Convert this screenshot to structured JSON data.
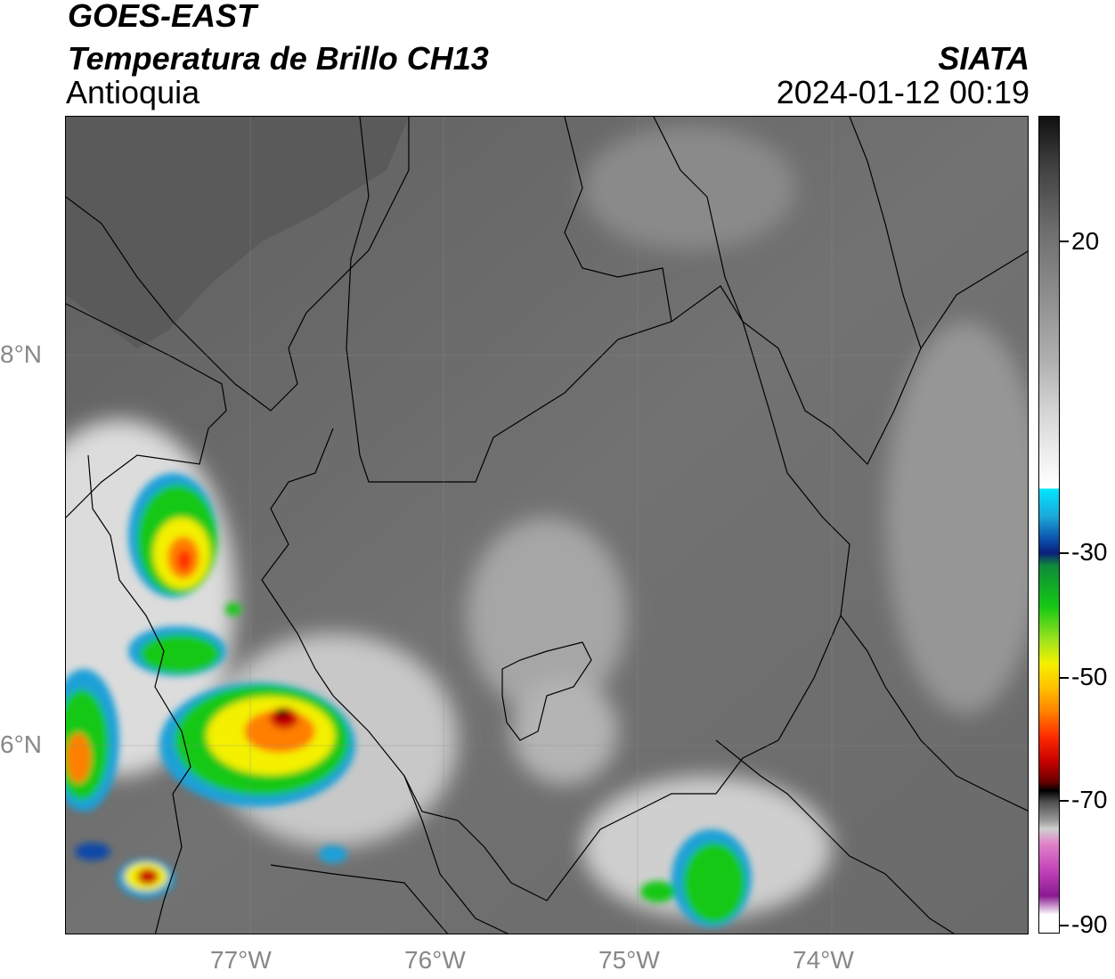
{
  "header": {
    "satellite": "GOES-EAST",
    "product": "Temperatura de Brillo CH13",
    "region": "Antioquia",
    "brand": "SIATA",
    "datetime": "2024-01-12 00:19"
  },
  "map": {
    "lat_labels": [
      "8°N",
      "6°N"
    ],
    "lon_labels": [
      "77°W",
      "76°W",
      "75°W",
      "74°W"
    ]
  },
  "colorbar": {
    "tick_labels": [
      "20",
      "-30",
      "-50",
      "-70",
      "-90"
    ],
    "colors": {
      "warm": "#101010",
      "mid_gray": "#8e8e8e",
      "cold_start": "#00e5ff",
      "blue": "#0a1f7a",
      "green": "#14c814",
      "yellow": "#f4f000",
      "orange": "#ff7f00",
      "red": "#ff2a00",
      "dark_red": "#6a0000",
      "magenta": "#c040b8"
    }
  }
}
